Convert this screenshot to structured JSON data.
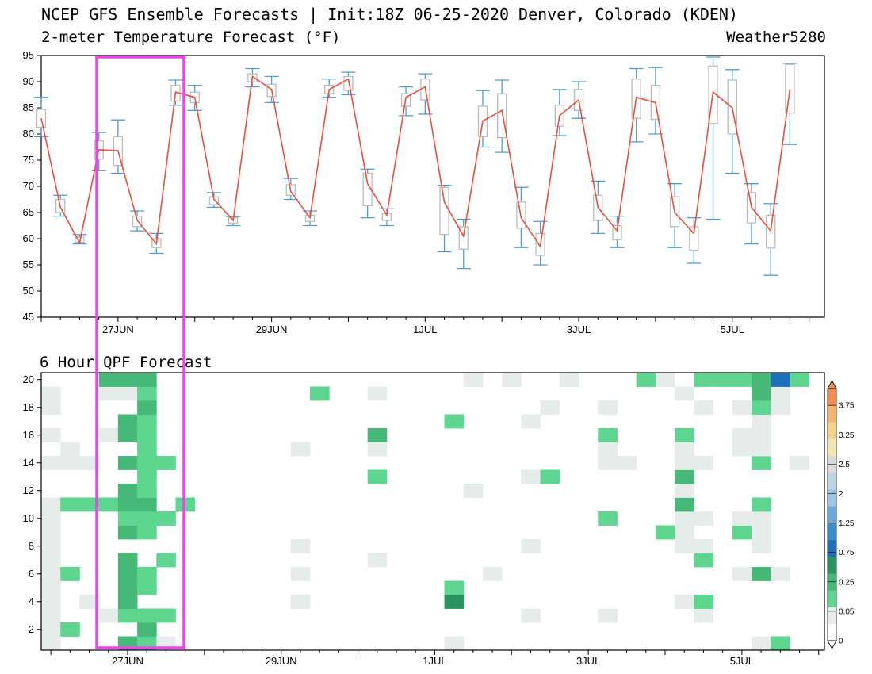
{
  "header": {
    "title": "NCEP GFS Ensemble Forecasts | Init:18Z 06-25-2020 Denver, Colorado (KDEN)",
    "subtitle": "2-meter Temperature Forecast (°F)",
    "credit": "Weather5280"
  },
  "qpf_title": "6 Hour QPF Forecast",
  "colors": {
    "line": "#e8503a",
    "whisker": "#4a9fd6",
    "box": "#bbbbbb",
    "highlight": "#ee44ee"
  },
  "chart_data": [
    {
      "type": "box",
      "title": "2-meter Temperature Forecast (°F)",
      "ylim": [
        45,
        95
      ],
      "yticks": [
        45,
        50,
        55,
        60,
        65,
        70,
        75,
        80,
        85,
        90,
        95
      ],
      "xlim": [
        0,
        40.8
      ],
      "x_tick_labels": [
        {
          "label": "27JUN",
          "x": 4
        },
        {
          "label": "29JUN",
          "x": 12
        },
        {
          "label": "1JUL",
          "x": 20
        },
        {
          "label": "3JUL",
          "x": 28
        },
        {
          "label": "5JUL",
          "x": 36
        }
      ],
      "x": [
        0,
        1,
        2,
        3,
        4,
        5,
        6,
        7,
        8,
        9,
        10,
        11,
        12,
        13,
        14,
        15,
        16,
        17,
        18,
        19,
        20,
        21,
        22,
        23,
        24,
        25,
        26,
        27,
        28,
        29,
        30,
        31,
        32,
        33,
        34,
        35,
        36,
        37,
        38,
        39,
        40
      ],
      "mean": [
        83.0,
        66.0,
        59.2,
        77.0,
        76.8,
        63.5,
        59.0,
        88.0,
        87.0,
        67.5,
        63.5,
        91.0,
        88.5,
        69.0,
        64.0,
        88.5,
        90.5,
        70.5,
        64.5,
        87.0,
        89.0,
        67.0,
        60.5,
        82.5,
        84.5,
        64.0,
        58.5,
        83.5,
        86.5,
        66.0,
        61.5,
        87.0,
        86.0,
        65.0,
        61.0,
        88.0,
        85.0,
        66.0,
        61.5,
        88.5,
        null
      ],
      "whisker_low": [
        79.5,
        64.3,
        59.0,
        73.0,
        72.5,
        61.5,
        57.2,
        85.5,
        84.5,
        66.0,
        62.5,
        89.0,
        86.0,
        67.5,
        62.5,
        87.0,
        87.5,
        64.0,
        62.5,
        83.5,
        83.8,
        57.5,
        54.3,
        77.5,
        76.5,
        58.3,
        55.0,
        79.7,
        83.0,
        61.0,
        58.3,
        78.5,
        80.0,
        58.3,
        55.3,
        63.7,
        72.5,
        59.0,
        53.0,
        78.0,
        null
      ],
      "whisker_high": [
        87.0,
        68.3,
        60.8,
        80.3,
        82.7,
        65.3,
        61.0,
        90.3,
        89.3,
        68.8,
        64.2,
        92.5,
        91.0,
        71.5,
        65.3,
        90.5,
        91.8,
        73.3,
        65.7,
        89.0,
        91.5,
        70.2,
        63.7,
        88.3,
        90.3,
        69.8,
        63.3,
        88.5,
        90.0,
        71.0,
        64.3,
        92.5,
        92.7,
        70.5,
        64.0,
        94.7,
        92.3,
        70.5,
        66.7,
        93.5,
        null
      ],
      "box_low": [
        81.3,
        65.0,
        59.3,
        75.2,
        74.0,
        62.3,
        58.3,
        86.3,
        86.0,
        66.5,
        63.0,
        90.0,
        87.2,
        68.3,
        63.3,
        87.7,
        88.3,
        66.3,
        63.5,
        85.3,
        86.5,
        60.8,
        58.0,
        79.5,
        79.3,
        62.0,
        56.8,
        81.5,
        84.5,
        63.5,
        59.8,
        83.0,
        82.8,
        62.3,
        57.8,
        82.0,
        80.0,
        63.0,
        58.2,
        84.0,
        null
      ],
      "box_high": [
        84.7,
        67.5,
        60.3,
        78.7,
        79.5,
        64.3,
        60.0,
        89.3,
        88.0,
        68.0,
        64.0,
        91.5,
        89.5,
        70.3,
        64.5,
        89.3,
        91.0,
        72.5,
        64.8,
        87.7,
        90.5,
        69.8,
        62.3,
        85.3,
        87.7,
        67.0,
        61.0,
        85.5,
        88.5,
        68.3,
        62.5,
        90.5,
        89.3,
        68.0,
        62.3,
        93.0,
        90.3,
        68.8,
        64.5,
        93.3,
        null
      ]
    },
    {
      "type": "heatmap",
      "title": "6 Hour QPF Forecast",
      "ylim": [
        0.5,
        20.5
      ],
      "yticks": [
        2,
        4,
        6,
        8,
        10,
        12,
        14,
        16,
        18,
        20
      ],
      "x_tick_labels": [
        "27JUN",
        "29JUN",
        "1JUL",
        "3JUL",
        "5JUL"
      ],
      "colorbar": {
        "labels": [
          "0",
          "0.05",
          "0.25",
          "0.75",
          "1.25",
          "2",
          "2.5",
          "3.25",
          "3.75"
        ],
        "colors": [
          "#ffffff",
          "#e6ece9",
          "#5fd68f",
          "#46b878",
          "#2a9460",
          "#1c6fb8",
          "#3d8bcb",
          "#6aa8dc",
          "#9ac6e9",
          "#bcd5e6",
          "#d9d9d9",
          "#f3e5b0",
          "#f6d188",
          "#f4b46a",
          "#ef8d55"
        ]
      },
      "cells": [
        [
          0,
          1,
          1
        ],
        [
          0,
          2,
          1
        ],
        [
          0,
          3,
          1
        ],
        [
          0,
          4,
          1
        ],
        [
          0,
          5,
          1
        ],
        [
          0,
          6,
          1
        ],
        [
          0,
          7,
          1
        ],
        [
          0,
          8,
          1
        ],
        [
          0,
          9,
          1
        ],
        [
          0,
          10,
          1
        ],
        [
          0,
          11,
          1
        ],
        [
          0,
          14,
          1
        ],
        [
          0,
          16,
          1
        ],
        [
          0,
          18,
          1
        ],
        [
          0,
          19,
          1
        ],
        [
          1,
          2,
          2
        ],
        [
          1,
          6,
          2
        ],
        [
          1,
          11,
          2
        ],
        [
          1,
          14,
          1
        ],
        [
          1,
          15,
          1
        ],
        [
          2,
          11,
          2
        ],
        [
          2,
          14,
          1
        ],
        [
          2,
          4,
          1
        ],
        [
          3,
          3,
          1
        ],
        [
          3,
          11,
          2
        ],
        [
          3,
          16,
          1
        ],
        [
          3,
          19,
          1
        ],
        [
          3,
          20,
          3
        ],
        [
          4,
          1,
          3
        ],
        [
          4,
          3,
          2
        ],
        [
          4,
          4,
          3
        ],
        [
          4,
          5,
          3
        ],
        [
          4,
          6,
          3
        ],
        [
          4,
          7,
          3
        ],
        [
          4,
          9,
          3
        ],
        [
          4,
          10,
          2
        ],
        [
          4,
          11,
          3
        ],
        [
          4,
          12,
          3
        ],
        [
          4,
          14,
          3
        ],
        [
          4,
          16,
          3
        ],
        [
          4,
          17,
          3
        ],
        [
          4,
          19,
          1
        ],
        [
          4,
          20,
          3
        ],
        [
          5,
          1,
          2
        ],
        [
          5,
          2,
          3
        ],
        [
          5,
          3,
          2
        ],
        [
          5,
          5,
          2
        ],
        [
          5,
          6,
          2
        ],
        [
          5,
          9,
          2
        ],
        [
          5,
          10,
          2
        ],
        [
          5,
          11,
          3
        ],
        [
          5,
          12,
          2
        ],
        [
          5,
          13,
          2
        ],
        [
          5,
          14,
          2
        ],
        [
          5,
          15,
          2
        ],
        [
          5,
          16,
          2
        ],
        [
          5,
          17,
          2
        ],
        [
          5,
          18,
          3
        ],
        [
          5,
          19,
          2
        ],
        [
          5,
          20,
          3
        ],
        [
          6,
          1,
          1
        ],
        [
          6,
          3,
          2
        ],
        [
          6,
          7,
          2
        ],
        [
          6,
          10,
          2
        ],
        [
          6,
          14,
          2
        ],
        [
          7,
          11,
          2
        ],
        [
          13,
          4,
          1
        ],
        [
          13,
          6,
          1
        ],
        [
          13,
          8,
          1
        ],
        [
          13,
          15,
          1
        ],
        [
          14,
          19,
          2
        ],
        [
          17,
          7,
          1
        ],
        [
          17,
          13,
          2
        ],
        [
          17,
          15,
          1
        ],
        [
          17,
          16,
          3
        ],
        [
          17,
          19,
          1
        ],
        [
          21,
          1,
          1
        ],
        [
          21,
          4,
          4
        ],
        [
          21,
          5,
          2
        ],
        [
          21,
          17,
          2
        ],
        [
          22,
          12,
          1
        ],
        [
          22,
          20,
          1
        ],
        [
          23,
          6,
          1
        ],
        [
          24,
          20,
          1
        ],
        [
          25,
          3,
          1
        ],
        [
          25,
          8,
          1
        ],
        [
          25,
          13,
          1
        ],
        [
          25,
          17,
          1
        ],
        [
          26,
          13,
          2
        ],
        [
          26,
          18,
          1
        ],
        [
          27,
          20,
          1
        ],
        [
          29,
          3,
          1
        ],
        [
          29,
          10,
          2
        ],
        [
          29,
          14,
          1
        ],
        [
          29,
          15,
          1
        ],
        [
          29,
          16,
          2
        ],
        [
          29,
          18,
          1
        ],
        [
          30,
          14,
          1
        ],
        [
          31,
          20,
          2
        ],
        [
          32,
          9,
          2
        ],
        [
          32,
          20,
          1
        ],
        [
          33,
          4,
          1
        ],
        [
          33,
          8,
          1
        ],
        [
          33,
          9,
          1
        ],
        [
          33,
          10,
          1
        ],
        [
          33,
          11,
          3
        ],
        [
          33,
          12,
          1
        ],
        [
          33,
          13,
          3
        ],
        [
          33,
          14,
          1
        ],
        [
          33,
          15,
          1
        ],
        [
          33,
          16,
          2
        ],
        [
          33,
          19,
          1
        ],
        [
          34,
          3,
          1
        ],
        [
          34,
          4,
          2
        ],
        [
          34,
          7,
          2
        ],
        [
          34,
          10,
          1
        ],
        [
          34,
          14,
          1
        ],
        [
          34,
          18,
          1
        ],
        [
          34,
          20,
          2
        ],
        [
          34,
          8,
          1
        ],
        [
          35,
          20,
          2
        ],
        [
          36,
          6,
          1
        ],
        [
          36,
          9,
          2
        ],
        [
          36,
          10,
          1
        ],
        [
          36,
          15,
          1
        ],
        [
          36,
          16,
          1
        ],
        [
          36,
          18,
          1
        ],
        [
          36,
          20,
          2
        ],
        [
          37,
          1,
          1
        ],
        [
          37,
          6,
          3
        ],
        [
          37,
          8,
          1
        ],
        [
          37,
          9,
          1
        ],
        [
          37,
          10,
          1
        ],
        [
          37,
          11,
          2
        ],
        [
          37,
          14,
          2
        ],
        [
          37,
          15,
          1
        ],
        [
          37,
          16,
          1
        ],
        [
          37,
          17,
          1
        ],
        [
          37,
          18,
          2
        ],
        [
          37,
          19,
          3
        ],
        [
          37,
          20,
          3
        ],
        [
          38,
          1,
          2
        ],
        [
          38,
          6,
          1
        ],
        [
          38,
          18,
          1
        ],
        [
          38,
          19,
          1
        ],
        [
          38,
          20,
          5
        ],
        [
          39,
          14,
          1
        ],
        [
          39,
          20,
          2
        ]
      ]
    }
  ]
}
